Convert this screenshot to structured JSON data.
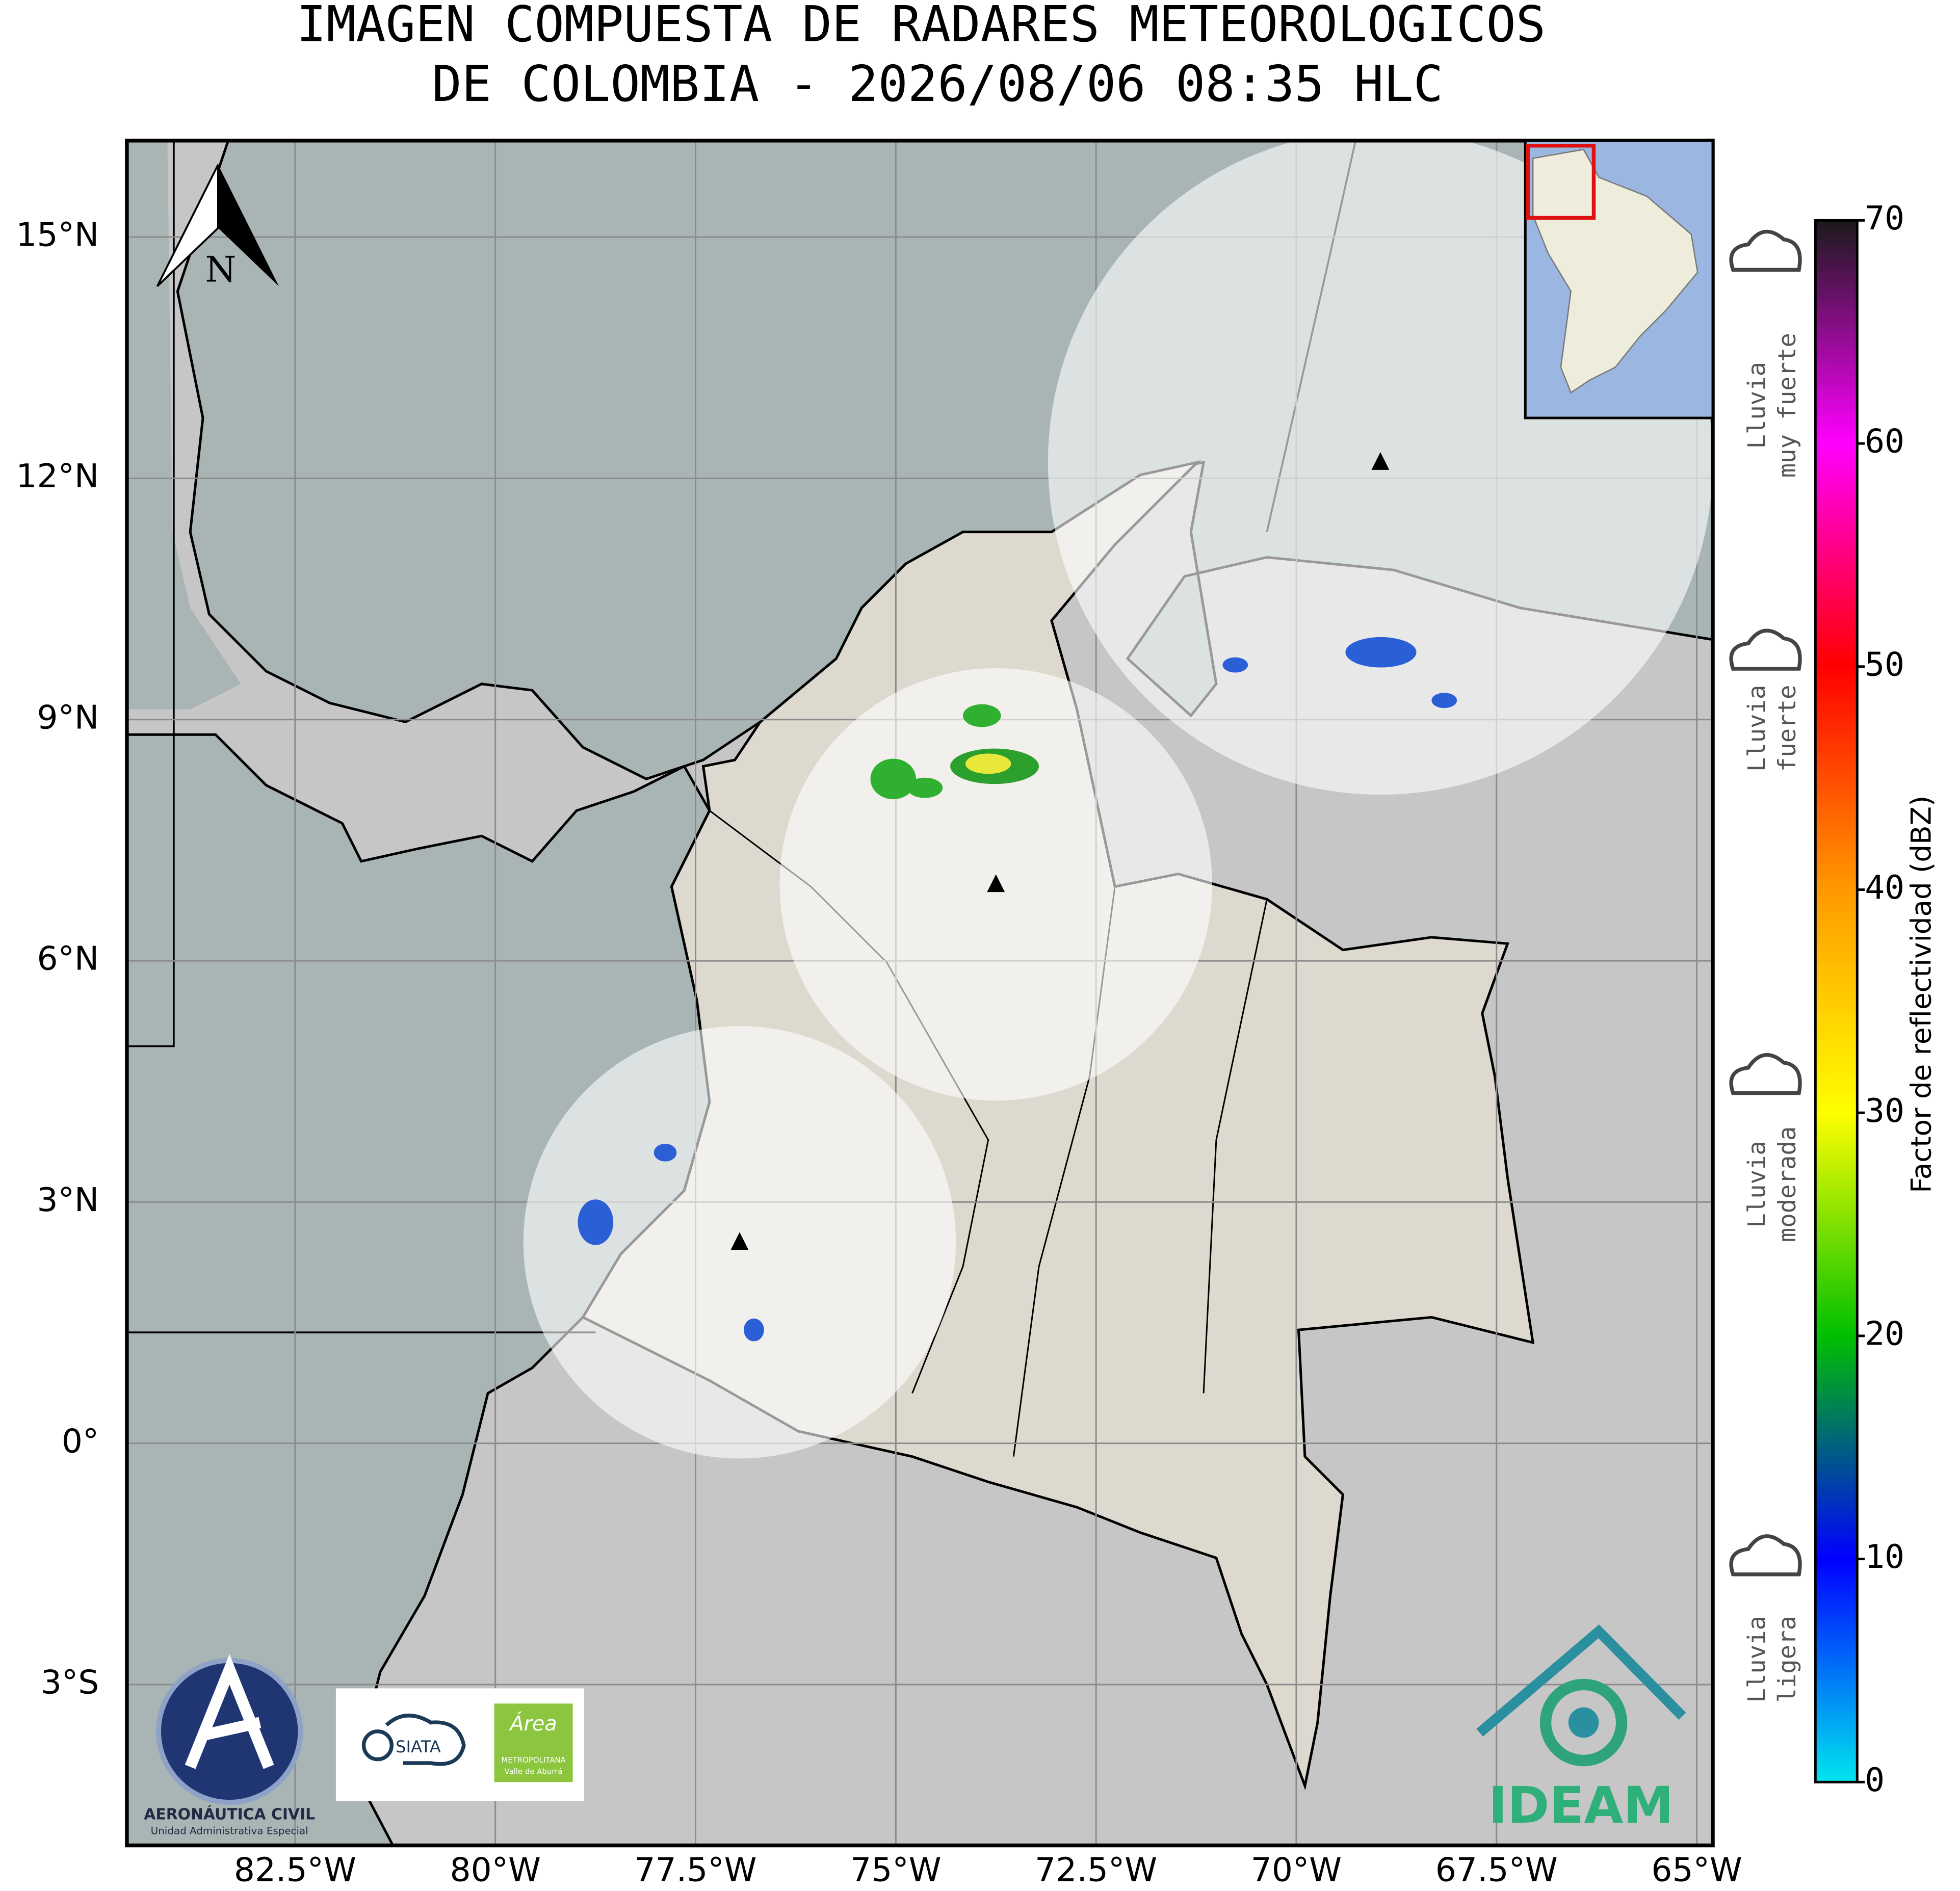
{
  "header": {
    "title_lines": [
      "IMAGEN COMPUESTA DE RADARES METEOROLOGICOS",
      "DE COLOMBIA - 2026/08/06 08:35 HLC"
    ]
  },
  "map": {
    "lonlim": [
      -84.6,
      -64.8
    ],
    "latlim": [
      -5,
      16.2
    ],
    "lon_ticks": [
      {
        "value": -82.5,
        "label": "82.5°W"
      },
      {
        "value": -80,
        "label": "80°W"
      },
      {
        "value": -77.5,
        "label": "77.5°W"
      },
      {
        "value": -75,
        "label": "75°W"
      },
      {
        "value": -72.5,
        "label": "72.5°W"
      },
      {
        "value": -70,
        "label": "70°W"
      },
      {
        "value": -67.5,
        "label": "67.5°W"
      },
      {
        "value": -65,
        "label": "65°W"
      }
    ],
    "lat_ticks": [
      {
        "value": 15,
        "label": "15°N"
      },
      {
        "value": 12,
        "label": "12°N"
      },
      {
        "value": 9,
        "label": "9°N"
      },
      {
        "value": 6,
        "label": "6°N"
      },
      {
        "value": 3,
        "label": "3°N"
      },
      {
        "value": 0,
        "label": "0°"
      },
      {
        "value": -3,
        "label": "3°S"
      }
    ],
    "grid": true,
    "radars": [
      {
        "lon": -73.75,
        "lat": 6.95,
        "range_deg": 2.7
      },
      {
        "lon": -68.95,
        "lat": 12.2,
        "range_deg": 4.15
      },
      {
        "lon": -76.95,
        "lat": 2.5,
        "range_deg": 2.7
      }
    ],
    "north_label": "N"
  },
  "colorbar": {
    "label": "Factor de reflectividad (dBZ)",
    "lim": [
      0,
      70
    ],
    "ticks": [
      0,
      10,
      20,
      30,
      40,
      50,
      60,
      70
    ],
    "colors": [
      "#00e5ee",
      "#0000ff",
      "#00c000",
      "#ffff00",
      "#ff9900",
      "#ff0000",
      "#ff00ff",
      "#1a1a1a"
    ]
  },
  "rain_categories": [
    [
      "Lluvia",
      "muy fuerte"
    ],
    [
      "Lluvia",
      "fuerte"
    ],
    [
      "Lluvia",
      "moderada"
    ],
    [
      "Lluvia",
      "ligera"
    ]
  ],
  "logos": {
    "aerocivil": "AERONÁUTICA CIVIL",
    "aerocivil_sub": "Unidad Administrativa Especial",
    "siata": "SIATA",
    "area": "Área",
    "area_sub1": "METROPOLITANA",
    "area_sub2": "Valle de Aburrá",
    "ideam": "IDEAM"
  }
}
